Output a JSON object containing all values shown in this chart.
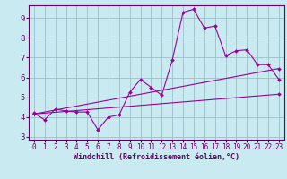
{
  "xlabel": "Windchill (Refroidissement éolien,°C)",
  "bg_color": "#c8eaf0",
  "line_color": "#990099",
  "grid_color": "#9bbec8",
  "xlim": [
    -0.5,
    23.5
  ],
  "ylim": [
    2.85,
    9.65
  ],
  "yticks": [
    3,
    4,
    5,
    6,
    7,
    8,
    9
  ],
  "xticks": [
    0,
    1,
    2,
    3,
    4,
    5,
    6,
    7,
    8,
    9,
    10,
    11,
    12,
    13,
    14,
    15,
    16,
    17,
    18,
    19,
    20,
    21,
    22,
    23
  ],
  "line1_x": [
    0,
    1,
    2,
    3,
    4,
    5,
    6,
    7,
    8,
    9,
    10,
    11,
    12,
    13,
    14,
    15,
    16,
    17,
    18,
    19,
    20,
    21,
    22,
    23
  ],
  "line1_y": [
    4.2,
    3.85,
    4.4,
    4.3,
    4.25,
    4.25,
    3.35,
    4.0,
    4.1,
    5.25,
    5.9,
    5.5,
    5.1,
    6.9,
    9.3,
    9.45,
    8.5,
    8.6,
    7.1,
    7.35,
    7.4,
    6.65,
    6.65,
    5.9
  ],
  "line2_x": [
    0,
    23
  ],
  "line2_y": [
    4.15,
    6.45
  ],
  "line3_x": [
    0,
    23
  ],
  "line3_y": [
    4.15,
    5.15
  ]
}
